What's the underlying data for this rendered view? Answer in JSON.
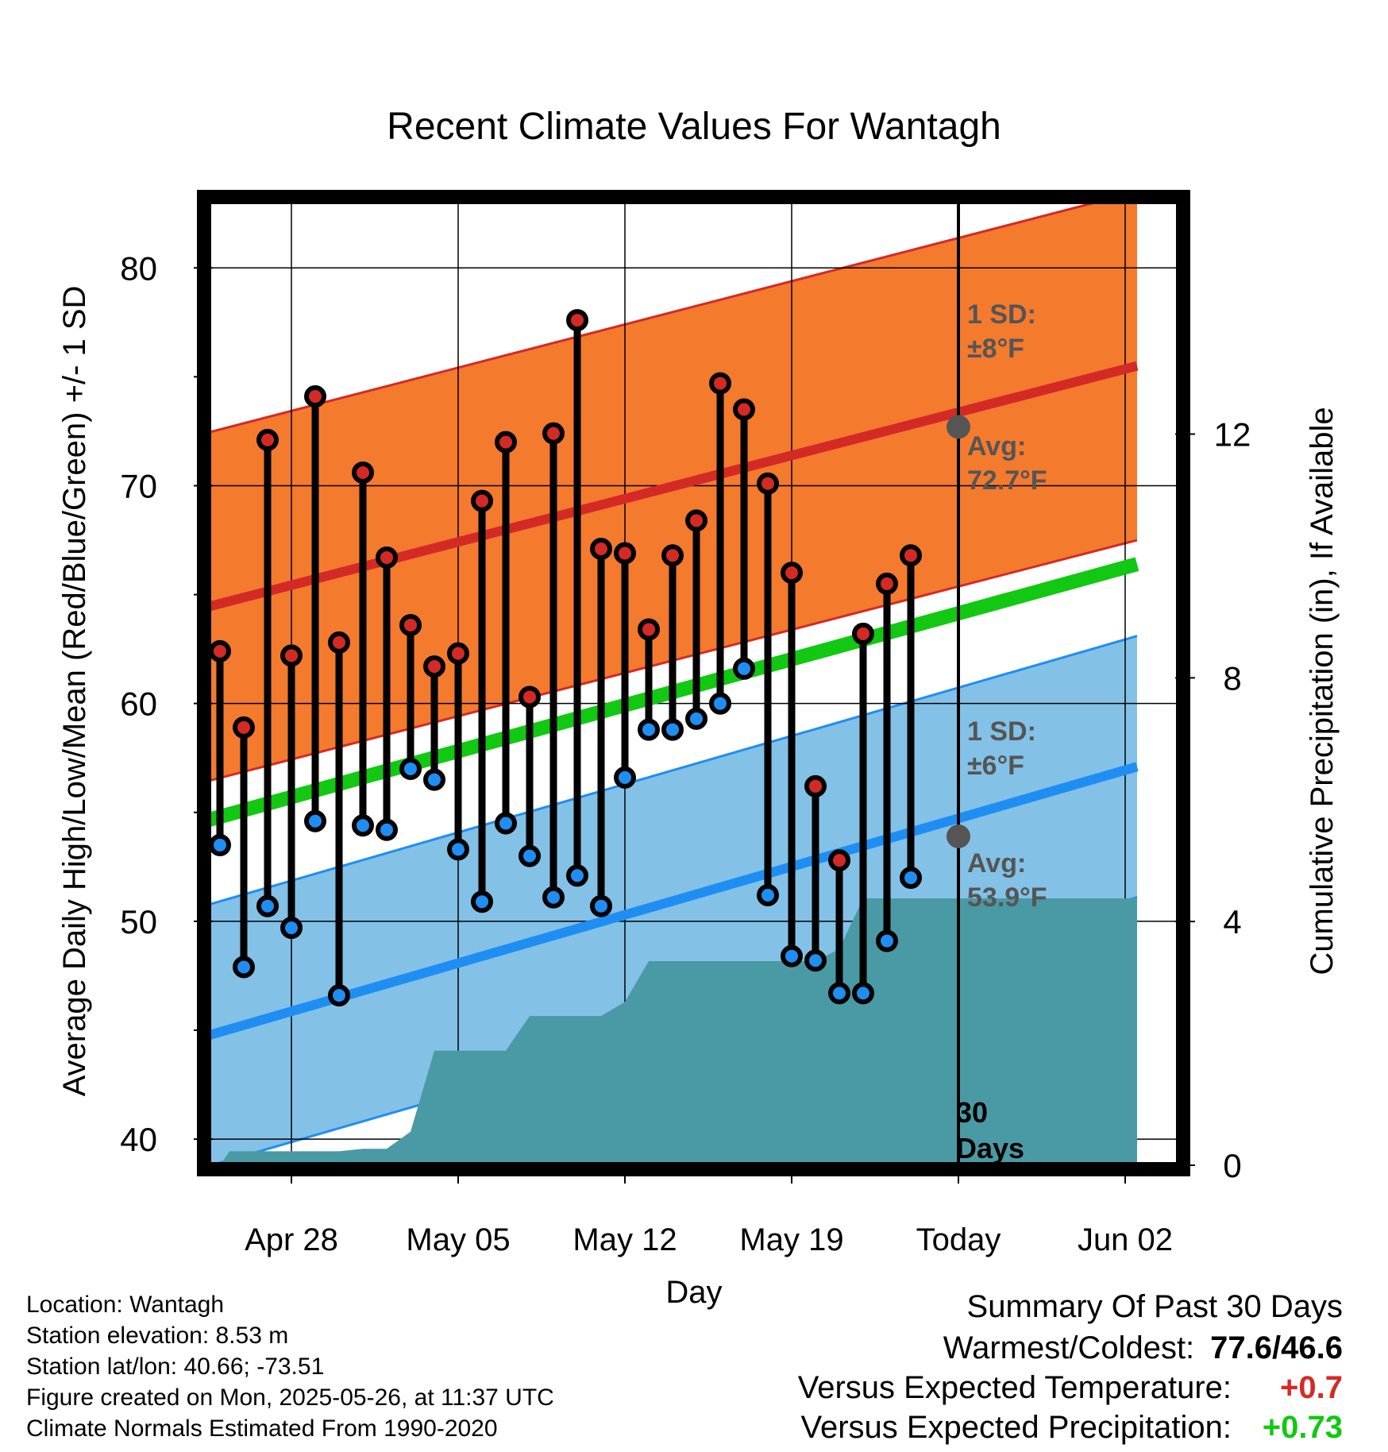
{
  "colors": {
    "high_band": "#f47a2e",
    "high_edge": "#d42a26",
    "high_avg": "#d42a26",
    "low_band": "#84c1e6",
    "low_edge": "#1f8ef2",
    "low_avg": "#1f8ef2",
    "mean_line": "#12c812",
    "precip": "#4a9aa5",
    "high_dot": "#d42a26",
    "low_dot": "#1f8ef2",
    "annotation": "#555555",
    "warm_value": "#d42a26",
    "precip_value": "#12c812"
  },
  "chart_data": {
    "type": "line",
    "title": "Recent Climate Values For Wantagh",
    "xlabel": "Day",
    "ylabel": "Average Daily High/Low/Mean (Red/Blue/Green) +/- 1 SD",
    "y2label": "Cumulative Precipitation (in), If Available",
    "x_ticks": [
      {
        "day": 4,
        "label": "Apr 28"
      },
      {
        "day": 11,
        "label": "May 05"
      },
      {
        "day": 18,
        "label": "May 12"
      },
      {
        "day": 25,
        "label": "May 19"
      },
      {
        "day": 32,
        "label": "Today"
      },
      {
        "day": 39,
        "label": "Jun 02"
      }
    ],
    "xlim_note": "Apr 25 to Jun 03",
    "ylim": [
      38.8,
      83
    ],
    "y_ticks": [
      40,
      50,
      60,
      70,
      80
    ],
    "y2lim": [
      0,
      15.8
    ],
    "y2_ticks": [
      0,
      4,
      8,
      12
    ],
    "grid": true,
    "today_day": 32,
    "dates": [
      "Apr 26",
      "Apr 27",
      "Apr 28",
      "Apr 29",
      "Apr 30",
      "May 01",
      "May 02",
      "May 03",
      "May 04",
      "May 05",
      "May 06",
      "May 07",
      "May 08",
      "May 09",
      "May 10",
      "May 11",
      "May 12",
      "May 13",
      "May 14",
      "May 15",
      "May 16",
      "May 17",
      "May 18",
      "May 19",
      "May 20",
      "May 21",
      "May 22",
      "May 23",
      "May 24",
      "May 25"
    ],
    "series": [
      {
        "name": "Daily High",
        "values": [
          62.4,
          58.9,
          72.1,
          62.2,
          74.1,
          62.8,
          70.6,
          66.7,
          63.6,
          61.7,
          62.3,
          69.3,
          72.0,
          60.3,
          72.4,
          77.6,
          67.1,
          66.9,
          63.4,
          66.8,
          68.4,
          74.7,
          73.5,
          70.1,
          66.0,
          56.2,
          52.8,
          63.2,
          65.5,
          66.8
        ]
      },
      {
        "name": "Daily Low",
        "values": [
          53.5,
          47.9,
          50.7,
          49.7,
          54.6,
          46.6,
          54.4,
          54.2,
          57.0,
          56.5,
          53.3,
          50.9,
          54.5,
          53.0,
          51.1,
          52.1,
          50.7,
          56.6,
          58.8,
          58.8,
          59.3,
          60.0,
          61.6,
          51.2,
          48.4,
          48.2,
          46.7,
          46.7,
          49.1,
          52.0
        ]
      }
    ],
    "normals": {
      "day_start": 0,
      "day_end": 39.5,
      "high_avg": [
        64.3,
        75.5
      ],
      "high_sd": 8,
      "low_avg": [
        44.6,
        57.1
      ],
      "low_sd": 6,
      "mean": [
        54.5,
        66.4
      ]
    },
    "precip_cumulative": [
      [
        0,
        0
      ],
      [
        1,
        0
      ],
      [
        1.4,
        0.23
      ],
      [
        3,
        0.23
      ],
      [
        6,
        0.23
      ],
      [
        7,
        0.27
      ],
      [
        8,
        0.27
      ],
      [
        9,
        0.55
      ],
      [
        10,
        1.88
      ],
      [
        13,
        1.88
      ],
      [
        14,
        2.45
      ],
      [
        17,
        2.45
      ],
      [
        18,
        2.68
      ],
      [
        19,
        3.35
      ],
      [
        25,
        3.35
      ],
      [
        26,
        3.35
      ],
      [
        27,
        3.55
      ],
      [
        28,
        4.38
      ],
      [
        39.5,
        4.38
      ]
    ],
    "annotations": {
      "high_sd_label": "1 SD:",
      "high_sd_value": "±8°F",
      "high_avg_label": "Avg:",
      "high_avg_value": "72.7°F",
      "high_avg_at_today": 72.7,
      "low_sd_label": "1 SD:",
      "low_sd_value": "±6°F",
      "low_avg_label": "Avg:",
      "low_avg_value": "53.9°F",
      "low_avg_at_today": 53.9,
      "days_value": "30",
      "days_label": "Days"
    }
  },
  "info": {
    "location": "Location: Wantagh",
    "elevation": "Station elevation: 8.53 m",
    "latlon": "Station lat/lon: 40.66; -73.51",
    "created": "Figure created on Mon, 2025-05-26, at 11:37 UTC",
    "normals": "Climate Normals Estimated From 1990-2020"
  },
  "summary": {
    "title": "Summary Of Past 30 Days",
    "warm_label": "Warmest/Coldest:",
    "warm_value": "77.6/46.6",
    "temp_label": "Versus Expected Temperature:",
    "temp_value": "+0.7",
    "precip_label": "Versus Expected Precipitation:",
    "precip_value": "+0.73"
  }
}
